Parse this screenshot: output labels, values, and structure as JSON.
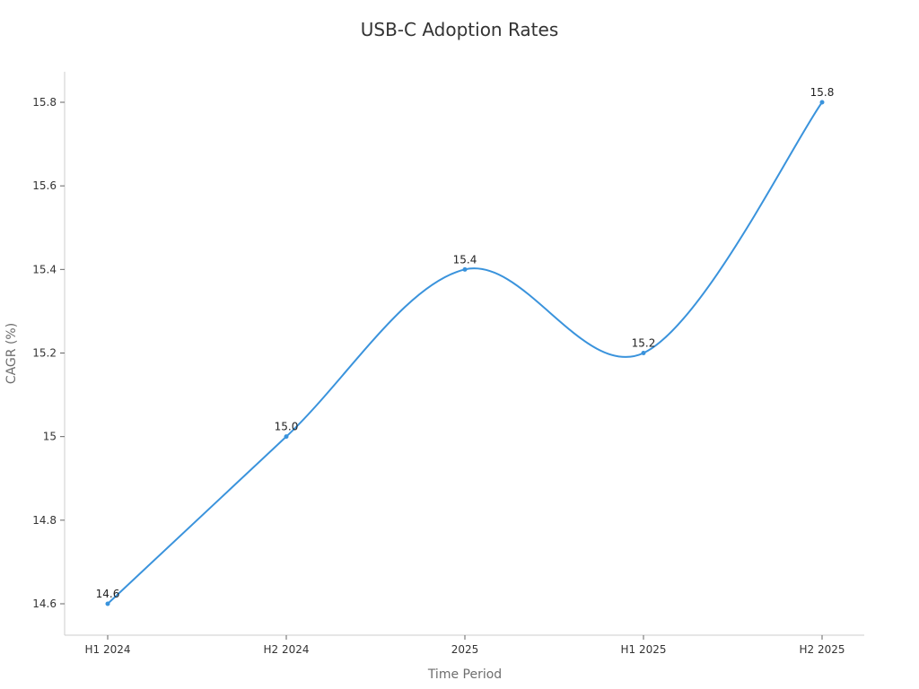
{
  "chart_data": {
    "type": "line",
    "title": "USB-C Adoption Rates",
    "xlabel": "Time Period",
    "ylabel": "CAGR (%)",
    "categories": [
      "H1 2024",
      "H2 2024",
      "2025",
      "H1 2025",
      "H2 2025"
    ],
    "series": [
      {
        "values": [
          14.6,
          15.0,
          15.4,
          15.2,
          15.8
        ],
        "data_labels": [
          "14.6",
          "15.0",
          "15.4",
          "15.2",
          "15.8"
        ],
        "color": "#3a93dc"
      }
    ],
    "ylim": [
      14.53,
      15.88
    ],
    "yticks": [
      14.6,
      14.8,
      15.0,
      15.2,
      15.4,
      15.6,
      15.8
    ],
    "ytick_labels": [
      "14.6",
      "14.8",
      "15",
      "15.2",
      "15.4",
      "15.6",
      "15.8"
    ],
    "grid": false,
    "legend": "none",
    "curve": "smooth"
  }
}
